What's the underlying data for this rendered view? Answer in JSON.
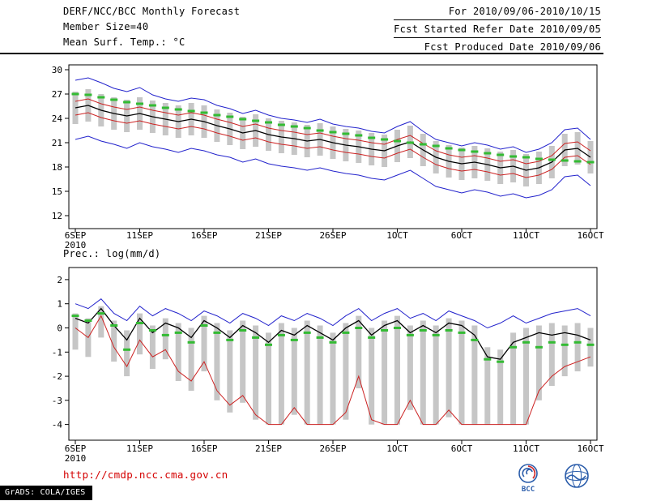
{
  "header": {
    "left_lines": [
      "DERF/NCC/BCC Monthly Forecast",
      "Member Size=40",
      "Mean Surf. Temp.: °C"
    ],
    "right_lines": [
      "For 2010/09/06-2010/10/15",
      "Fcst Started Refer Date 2010/09/05",
      "Fcst Produced Date 2010/09/06"
    ]
  },
  "footer": {
    "url": "http://cmdp.ncc.cma.gov.cn",
    "grads_label": "GrADS: COLA/IGES",
    "logo_bcc_label": "BCC"
  },
  "colors": {
    "blue": "#2222cc",
    "red": "#cc2222",
    "black": "#000000",
    "green": "#33bb33",
    "bar_gray": "#c6c6c6",
    "url_red": "#d40000",
    "logo_blue": "#2a5caa",
    "logo_red": "#d03030"
  },
  "chart_data": [
    {
      "type": "line",
      "name": "mean-surface-temperature",
      "title": "Mean Surf. Temp.: °C",
      "xlabel": "",
      "ylabel": "",
      "grid": false,
      "ylim": [
        10.4,
        30.6
      ],
      "yticks": [
        30,
        27,
        24,
        21,
        18,
        15,
        12
      ],
      "n_points": 41,
      "x_tick_indices": [
        0,
        5,
        10,
        15,
        20,
        25,
        30,
        35,
        40
      ],
      "x_tick_labels": [
        "6SEP",
        "11SEP",
        "16SEP",
        "21SEP",
        "26SEP",
        "1OCT",
        "6OCT",
        "11OCT",
        "16OCT"
      ],
      "year_label": "2010",
      "ensemble_bars": {
        "high": [
          27.3,
          27.6,
          27.0,
          26.6,
          26.3,
          26.6,
          26.2,
          25.9,
          25.6,
          25.9,
          25.6,
          25.1,
          24.7,
          24.2,
          24.5,
          24.0,
          23.7,
          23.5,
          23.2,
          23.4,
          23.0,
          22.7,
          22.5,
          22.2,
          22.0,
          22.6,
          23.1,
          22.1,
          21.2,
          20.7,
          20.4,
          20.6,
          20.3,
          19.9,
          20.1,
          19.6,
          19.9,
          20.6,
          22.1,
          22.3,
          21.2
        ],
        "low": [
          23.3,
          23.6,
          23.0,
          22.6,
          22.3,
          22.6,
          22.2,
          21.9,
          21.6,
          21.9,
          21.6,
          21.1,
          20.7,
          20.2,
          20.5,
          20.0,
          19.7,
          19.5,
          19.2,
          19.4,
          19.0,
          18.7,
          18.5,
          18.2,
          18.0,
          18.6,
          19.1,
          18.1,
          17.2,
          16.7,
          16.4,
          16.6,
          16.3,
          15.9,
          16.1,
          15.6,
          15.9,
          16.6,
          18.1,
          18.3,
          17.2
        ]
      },
      "series": [
        {
          "name": "ensemble-max",
          "color_key": "blue",
          "width": 1,
          "values": [
            28.7,
            29.0,
            28.4,
            27.7,
            27.3,
            27.8,
            26.9,
            26.4,
            26.1,
            26.5,
            26.3,
            25.6,
            25.2,
            24.6,
            25.0,
            24.4,
            24.0,
            23.8,
            23.5,
            23.9,
            23.3,
            23.0,
            22.8,
            22.4,
            22.2,
            23.0,
            23.6,
            22.4,
            21.4,
            21.0,
            20.6,
            21.0,
            20.7,
            20.2,
            20.5,
            19.8,
            20.2,
            21.0,
            22.6,
            22.8,
            21.4
          ]
        },
        {
          "name": "upper-quartile",
          "color_key": "red",
          "width": 1,
          "values": [
            26.1,
            26.4,
            25.8,
            25.4,
            25.1,
            25.4,
            25.0,
            24.7,
            24.4,
            24.7,
            24.4,
            23.9,
            23.5,
            23.0,
            23.3,
            22.8,
            22.5,
            22.3,
            22.0,
            22.2,
            21.8,
            21.5,
            21.3,
            21.0,
            20.8,
            21.4,
            21.9,
            20.9,
            20.0,
            19.5,
            19.2,
            19.4,
            19.1,
            18.7,
            18.9,
            18.4,
            18.7,
            19.4,
            20.9,
            21.1,
            20.0
          ]
        },
        {
          "name": "ensemble-mean",
          "color_key": "black",
          "width": 1.3,
          "values": [
            25.3,
            25.6,
            25.0,
            24.6,
            24.3,
            24.6,
            24.2,
            23.9,
            23.6,
            23.9,
            23.6,
            23.1,
            22.7,
            22.2,
            22.5,
            22.0,
            21.7,
            21.5,
            21.2,
            21.4,
            21.0,
            20.7,
            20.5,
            20.2,
            20.0,
            20.6,
            21.1,
            20.1,
            19.2,
            18.7,
            18.4,
            18.6,
            18.3,
            17.9,
            18.1,
            17.6,
            17.9,
            18.6,
            20.1,
            20.3,
            19.2
          ]
        },
        {
          "name": "lower-quartile",
          "color_key": "red",
          "width": 1,
          "values": [
            24.4,
            24.7,
            24.1,
            23.7,
            23.4,
            23.7,
            23.3,
            23.0,
            22.7,
            23.0,
            22.7,
            22.2,
            21.8,
            21.3,
            21.6,
            21.1,
            20.8,
            20.6,
            20.3,
            20.5,
            20.1,
            19.8,
            19.6,
            19.3,
            19.1,
            19.7,
            20.2,
            19.2,
            18.3,
            17.8,
            17.5,
            17.7,
            17.4,
            17.0,
            17.2,
            16.7,
            17.0,
            17.7,
            19.2,
            19.4,
            18.3
          ]
        },
        {
          "name": "ensemble-min",
          "color_key": "blue",
          "width": 1,
          "values": [
            21.4,
            21.8,
            21.2,
            20.8,
            20.3,
            21.0,
            20.5,
            20.2,
            19.8,
            20.3,
            20.0,
            19.5,
            19.2,
            18.6,
            19.0,
            18.4,
            18.1,
            17.9,
            17.6,
            17.9,
            17.5,
            17.2,
            17.0,
            16.6,
            16.4,
            17.0,
            17.6,
            16.6,
            15.6,
            15.2,
            14.8,
            15.2,
            14.9,
            14.4,
            14.7,
            14.2,
            14.5,
            15.2,
            16.8,
            17.0,
            15.7
          ]
        },
        {
          "name": "reference-dashes",
          "color_key": "green",
          "style": "dash-marks",
          "values": [
            27.0,
            26.9,
            26.6,
            26.3,
            26.0,
            25.8,
            25.6,
            25.3,
            25.1,
            24.9,
            24.7,
            24.4,
            24.2,
            23.9,
            23.7,
            23.5,
            23.2,
            23.0,
            22.8,
            22.5,
            22.3,
            22.1,
            21.9,
            21.6,
            21.4,
            21.2,
            21.0,
            20.8,
            20.6,
            20.3,
            20.1,
            19.9,
            19.7,
            19.5,
            19.3,
            19.2,
            19.0,
            18.9,
            18.8,
            18.7,
            18.6
          ]
        }
      ]
    },
    {
      "type": "line",
      "name": "precipitation",
      "title": "Prec.: log(mm/d)",
      "xlabel": "",
      "ylabel": "",
      "grid": false,
      "ylim": [
        -4.65,
        2.5
      ],
      "yticks": [
        2,
        1,
        0,
        -1,
        -2,
        -3,
        -4
      ],
      "n_points": 41,
      "x_tick_indices": [
        0,
        5,
        10,
        15,
        20,
        25,
        30,
        35,
        40
      ],
      "x_tick_labels": [
        "6SEP",
        "11SEP",
        "16SEP",
        "21SEP",
        "26SEP",
        "1OCT",
        "6OCT",
        "11OCT",
        "16OCT"
      ],
      "year_label": "2010",
      "ensemble_bars": {
        "high": [
          0.6,
          0.4,
          0.9,
          0.3,
          -0.1,
          0.6,
          0.1,
          0.4,
          0.2,
          0.0,
          0.5,
          0.2,
          -0.1,
          0.3,
          0.1,
          -0.2,
          0.2,
          0.0,
          0.3,
          0.1,
          -0.2,
          0.2,
          0.5,
          0.0,
          0.3,
          0.5,
          0.1,
          0.3,
          0.1,
          0.4,
          0.3,
          0.1,
          -0.8,
          -0.9,
          -0.2,
          0.0,
          0.1,
          0.2,
          0.1,
          0.2,
          0.0
        ],
        "low": [
          -0.9,
          -1.2,
          -0.4,
          -1.4,
          -2.0,
          -1.1,
          -1.7,
          -1.3,
          -2.2,
          -2.6,
          -1.8,
          -3.0,
          -3.5,
          -3.1,
          -3.8,
          -4.0,
          -4.0,
          -3.6,
          -4.0,
          -4.0,
          -4.0,
          -3.8,
          -2.5,
          -4.0,
          -4.0,
          -4.0,
          -3.4,
          -4.0,
          -4.0,
          -3.7,
          -4.0,
          -4.0,
          -4.0,
          -4.0,
          -4.0,
          -4.0,
          -3.0,
          -2.4,
          -2.0,
          -1.8,
          -1.6
        ]
      },
      "series": [
        {
          "name": "ensemble-max",
          "color_key": "blue",
          "width": 1,
          "values": [
            1.0,
            0.8,
            1.2,
            0.6,
            0.3,
            0.9,
            0.5,
            0.8,
            0.6,
            0.3,
            0.7,
            0.5,
            0.2,
            0.6,
            0.4,
            0.1,
            0.5,
            0.3,
            0.6,
            0.4,
            0.1,
            0.5,
            0.8,
            0.3,
            0.6,
            0.8,
            0.4,
            0.6,
            0.3,
            0.7,
            0.5,
            0.3,
            0.0,
            0.2,
            0.5,
            0.2,
            0.4,
            0.6,
            0.7,
            0.8,
            0.5
          ]
        },
        {
          "name": "ensemble-mean",
          "color_key": "black",
          "width": 1.3,
          "values": [
            0.4,
            0.2,
            0.8,
            0.1,
            -0.5,
            0.4,
            -0.2,
            0.2,
            0.0,
            -0.4,
            0.3,
            0.0,
            -0.4,
            0.1,
            -0.2,
            -0.6,
            -0.1,
            -0.3,
            0.1,
            -0.2,
            -0.5,
            0.0,
            0.3,
            -0.3,
            0.1,
            0.3,
            -0.2,
            0.1,
            -0.2,
            0.2,
            0.1,
            -0.3,
            -1.2,
            -1.3,
            -0.6,
            -0.4,
            -0.2,
            -0.3,
            -0.2,
            -0.3,
            -0.5
          ]
        },
        {
          "name": "ensemble-min",
          "color_key": "red",
          "width": 1,
          "values": [
            0.0,
            -0.4,
            0.5,
            -0.8,
            -1.6,
            -0.5,
            -1.2,
            -0.9,
            -1.8,
            -2.2,
            -1.4,
            -2.6,
            -3.2,
            -2.8,
            -3.6,
            -4.0,
            -4.0,
            -3.3,
            -4.0,
            -4.0,
            -4.0,
            -3.5,
            -2.0,
            -3.8,
            -4.0,
            -4.0,
            -3.0,
            -4.0,
            -4.0,
            -3.4,
            -4.0,
            -4.0,
            -4.0,
            -4.0,
            -4.0,
            -4.0,
            -2.6,
            -2.0,
            -1.6,
            -1.4,
            -1.2
          ]
        },
        {
          "name": "reference-dashes",
          "color_key": "green",
          "style": "dash-marks",
          "values": [
            0.5,
            0.3,
            0.6,
            0.1,
            -0.9,
            0.2,
            -0.1,
            -0.3,
            -0.2,
            -0.6,
            0.1,
            -0.2,
            -0.5,
            -0.1,
            -0.4,
            -0.7,
            -0.3,
            -0.5,
            -0.2,
            -0.4,
            -0.6,
            -0.2,
            0.0,
            -0.4,
            -0.1,
            0.0,
            -0.3,
            -0.1,
            -0.3,
            -0.1,
            -0.2,
            -0.5,
            -1.3,
            -1.4,
            -0.8,
            -0.6,
            -0.8,
            -0.6,
            -0.7,
            -0.6,
            -0.7
          ]
        }
      ]
    }
  ]
}
